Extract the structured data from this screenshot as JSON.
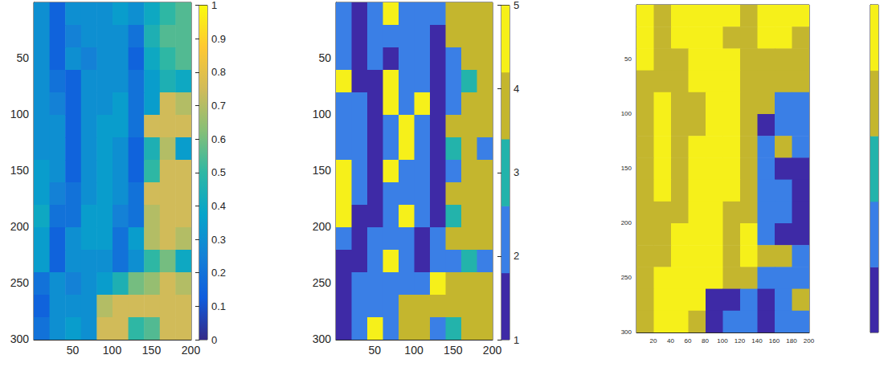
{
  "chart_data": [
    {
      "type": "heatmap",
      "xlim": [
        0.5,
        200.5
      ],
      "ylim": [
        0.5,
        300.5
      ],
      "xticks": [
        50,
        100,
        150,
        200
      ],
      "yticks": [
        50,
        100,
        150,
        200,
        250,
        300
      ],
      "x_edges": [
        0.5,
        20.5,
        40.5,
        60.5,
        80.5,
        100.5,
        120.5,
        140.5,
        160.5,
        180.5,
        200.5
      ],
      "y_edges": [
        0.5,
        20.5,
        40.5,
        60.5,
        80.5,
        100.5,
        120.5,
        140.5,
        160.5,
        180.5,
        200.5,
        220.5,
        240.5,
        260.5,
        280.5,
        300.5
      ],
      "cells": [
        [
          0.3,
          0.15,
          0.3,
          0.3,
          0.3,
          0.35,
          0.3,
          0.4,
          0.5,
          0.55
        ],
        [
          0.3,
          0.15,
          0.25,
          0.3,
          0.3,
          0.3,
          0.2,
          0.45,
          0.55,
          0.55
        ],
        [
          0.3,
          0.15,
          0.3,
          0.25,
          0.3,
          0.3,
          0.15,
          0.4,
          0.5,
          0.55
        ],
        [
          0.3,
          0.2,
          0.15,
          0.3,
          0.3,
          0.3,
          0.2,
          0.35,
          0.45,
          0.4
        ],
        [
          0.3,
          0.25,
          0.15,
          0.3,
          0.3,
          0.35,
          0.2,
          0.35,
          0.75,
          0.7
        ],
        [
          0.3,
          0.3,
          0.15,
          0.3,
          0.35,
          0.35,
          0.2,
          0.75,
          0.75,
          0.75
        ],
        [
          0.3,
          0.3,
          0.15,
          0.3,
          0.35,
          0.3,
          0.15,
          0.45,
          0.7,
          0.35
        ],
        [
          0.35,
          0.3,
          0.15,
          0.3,
          0.35,
          0.3,
          0.15,
          0.5,
          0.75,
          0.75
        ],
        [
          0.35,
          0.25,
          0.2,
          0.3,
          0.35,
          0.3,
          0.2,
          0.75,
          0.75,
          0.75
        ],
        [
          0.4,
          0.2,
          0.2,
          0.35,
          0.35,
          0.25,
          0.2,
          0.7,
          0.75,
          0.75
        ],
        [
          0.35,
          0.15,
          0.3,
          0.35,
          0.35,
          0.2,
          0.35,
          0.7,
          0.75,
          0.7
        ],
        [
          0.35,
          0.15,
          0.3,
          0.3,
          0.3,
          0.2,
          0.3,
          0.5,
          0.6,
          0.4
        ],
        [
          0.2,
          0.3,
          0.25,
          0.3,
          0.35,
          0.45,
          0.6,
          0.65,
          0.75,
          0.7
        ],
        [
          0.15,
          0.3,
          0.3,
          0.3,
          0.7,
          0.75,
          0.75,
          0.75,
          0.75,
          0.75
        ],
        [
          0.2,
          0.3,
          0.35,
          0.3,
          0.75,
          0.75,
          0.5,
          0.55,
          0.75,
          0.75
        ]
      ],
      "colorbar": {
        "range": [
          0,
          1
        ],
        "ticks": [
          0,
          0.1,
          0.2,
          0.3,
          0.4,
          0.5,
          0.6,
          0.7,
          0.8,
          0.9,
          1
        ],
        "colors": [
          "#352a87",
          "#0f5cdd",
          "#1481d6",
          "#06a4ca",
          "#2eb7a4",
          "#87bf77",
          "#d1bb59",
          "#fec832",
          "#f9fb0e"
        ]
      }
    },
    {
      "type": "heatmap",
      "xlim": [
        0.5,
        200.5
      ],
      "ylim": [
        0.5,
        300.5
      ],
      "xticks": [
        50,
        100,
        150,
        200
      ],
      "yticks": [
        50,
        100,
        150,
        200,
        250,
        300
      ],
      "x_edges": [
        0.5,
        20.5,
        40.5,
        60.5,
        80.5,
        100.5,
        120.5,
        140.5,
        160.5,
        180.5,
        200.5
      ],
      "y_edges": [
        0.5,
        20.5,
        40.5,
        60.5,
        80.5,
        100.5,
        120.5,
        140.5,
        160.5,
        180.5,
        200.5,
        220.5,
        240.5,
        260.5,
        280.5,
        300.5
      ],
      "cells": [
        [
          2,
          1,
          2,
          5,
          2,
          2,
          2,
          4,
          4,
          4
        ],
        [
          2,
          1,
          2,
          2,
          2,
          2,
          1,
          4,
          4,
          4
        ],
        [
          2,
          1,
          2,
          1,
          2,
          2,
          1,
          2,
          4,
          4
        ],
        [
          5,
          1,
          1,
          5,
          2,
          2,
          1,
          2,
          3,
          4
        ],
        [
          2,
          2,
          1,
          5,
          2,
          5,
          1,
          2,
          4,
          4
        ],
        [
          2,
          2,
          1,
          2,
          5,
          2,
          1,
          4,
          4,
          4
        ],
        [
          2,
          2,
          1,
          2,
          5,
          2,
          1,
          3,
          4,
          2
        ],
        [
          5,
          2,
          1,
          5,
          2,
          2,
          1,
          2,
          4,
          4
        ],
        [
          5,
          2,
          1,
          2,
          2,
          2,
          1,
          4,
          4,
          4
        ],
        [
          5,
          1,
          1,
          2,
          5,
          2,
          1,
          3,
          4,
          4
        ],
        [
          2,
          1,
          2,
          2,
          2,
          1,
          2,
          4,
          4,
          4
        ],
        [
          1,
          1,
          2,
          5,
          2,
          1,
          2,
          2,
          3,
          2
        ],
        [
          1,
          2,
          2,
          2,
          2,
          2,
          5,
          4,
          4,
          4
        ],
        [
          1,
          2,
          2,
          2,
          4,
          4,
          4,
          4,
          4,
          4
        ],
        [
          1,
          2,
          5,
          2,
          4,
          4,
          2,
          3,
          4,
          4
        ]
      ],
      "colorbar": {
        "range": [
          1,
          5
        ],
        "ticks": [
          1,
          2,
          3,
          4,
          5
        ],
        "levels": [
          1,
          2,
          3,
          4,
          5
        ],
        "colors": [
          "#3e2aa6",
          "#3a7fe6",
          "#23b3ab",
          "#c4b62e",
          "#f6f01a"
        ]
      }
    },
    {
      "type": "heatmap",
      "xlim": [
        0.5,
        200.5
      ],
      "ylim": [
        0.5,
        300.5
      ],
      "xticks": [
        20,
        40,
        60,
        80,
        100,
        120,
        140,
        160,
        180,
        200
      ],
      "yticks": [
        50,
        100,
        150,
        200,
        250,
        300
      ],
      "x_edges": [
        0.5,
        20.5,
        40.5,
        60.5,
        80.5,
        100.5,
        120.5,
        140.5,
        160.5,
        180.5,
        200.5
      ],
      "y_edges": [
        0.5,
        20.5,
        40.5,
        60.5,
        80.5,
        100.5,
        120.5,
        140.5,
        160.5,
        180.5,
        200.5,
        220.5,
        240.5,
        260.5,
        280.5,
        300.5
      ],
      "cells": [
        [
          5,
          4,
          5,
          5,
          5,
          5,
          4,
          5,
          5,
          5
        ],
        [
          5,
          4,
          5,
          5,
          5,
          4,
          4,
          5,
          5,
          4
        ],
        [
          5,
          4,
          4,
          5,
          5,
          5,
          4,
          4,
          4,
          4
        ],
        [
          4,
          4,
          4,
          5,
          5,
          5,
          4,
          4,
          4,
          4
        ],
        [
          4,
          5,
          4,
          4,
          5,
          5,
          4,
          4,
          2,
          2
        ],
        [
          4,
          5,
          4,
          4,
          5,
          5,
          4,
          1,
          2,
          2
        ],
        [
          4,
          5,
          4,
          5,
          5,
          5,
          4,
          2,
          4,
          2
        ],
        [
          4,
          5,
          4,
          5,
          5,
          5,
          4,
          2,
          1,
          1
        ],
        [
          4,
          5,
          4,
          5,
          5,
          5,
          4,
          2,
          2,
          1
        ],
        [
          4,
          4,
          4,
          5,
          5,
          4,
          4,
          2,
          2,
          1
        ],
        [
          4,
          4,
          5,
          5,
          5,
          4,
          5,
          2,
          1,
          1
        ],
        [
          4,
          4,
          5,
          5,
          5,
          4,
          5,
          4,
          4,
          2
        ],
        [
          4,
          5,
          5,
          5,
          5,
          4,
          4,
          2,
          2,
          2
        ],
        [
          4,
          5,
          5,
          5,
          1,
          1,
          2,
          1,
          2,
          4
        ],
        [
          4,
          5,
          5,
          4,
          1,
          2,
          2,
          1,
          2,
          2
        ]
      ],
      "colorbar": {
        "range": [
          1,
          5
        ],
        "ticks": [],
        "levels": [
          1,
          2,
          3,
          4,
          5
        ],
        "colors": [
          "#3e2aa6",
          "#3a7fe6",
          "#23b3ab",
          "#c4b62e",
          "#f6f01a"
        ]
      }
    }
  ]
}
